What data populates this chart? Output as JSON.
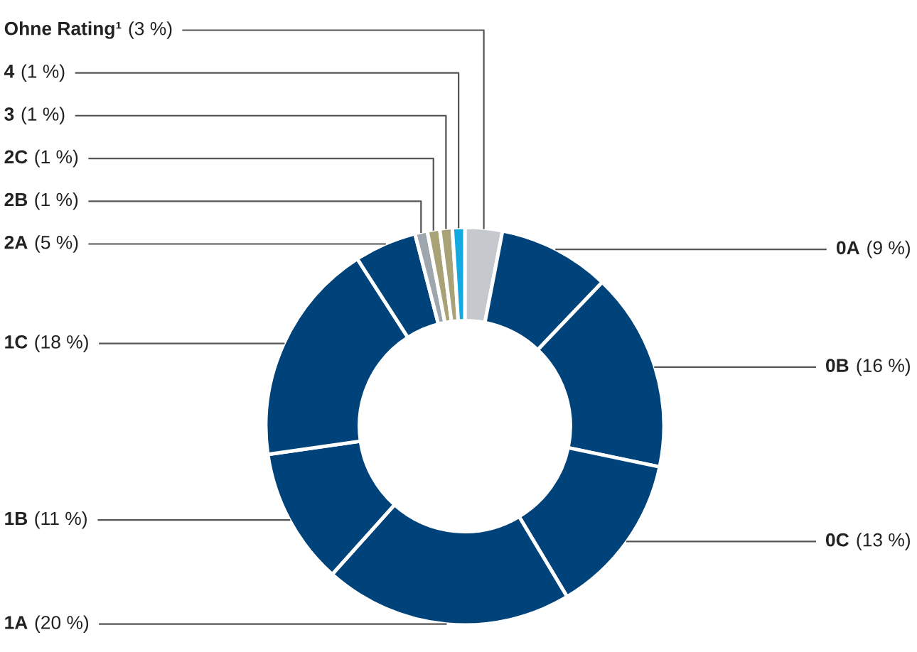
{
  "chart_data": {
    "type": "donut",
    "categories": [
      "Ohne Rating¹",
      "0A",
      "0B",
      "0C",
      "1A",
      "1B",
      "1C",
      "2A",
      "2B",
      "2C",
      "3",
      "4"
    ],
    "values": [
      3,
      9,
      16,
      13,
      20,
      11,
      18,
      5,
      1,
      1,
      1,
      1
    ],
    "value_labels": [
      "(3 %)",
      "(9 %)",
      "(16 %)",
      "(13 %)",
      "(20 %)",
      "(11 %)",
      "(18 %)",
      "(5 %)",
      "(1 %)",
      "(1 %)",
      "(1 %)",
      "(1 %)"
    ],
    "colors": [
      "#c5c8cc",
      "#00437a",
      "#00437a",
      "#00437a",
      "#00437a",
      "#00437a",
      "#00437a",
      "#00437a",
      "#9ea6ae",
      "#a9a277",
      "#a9a277",
      "#14a9e1"
    ]
  }
}
